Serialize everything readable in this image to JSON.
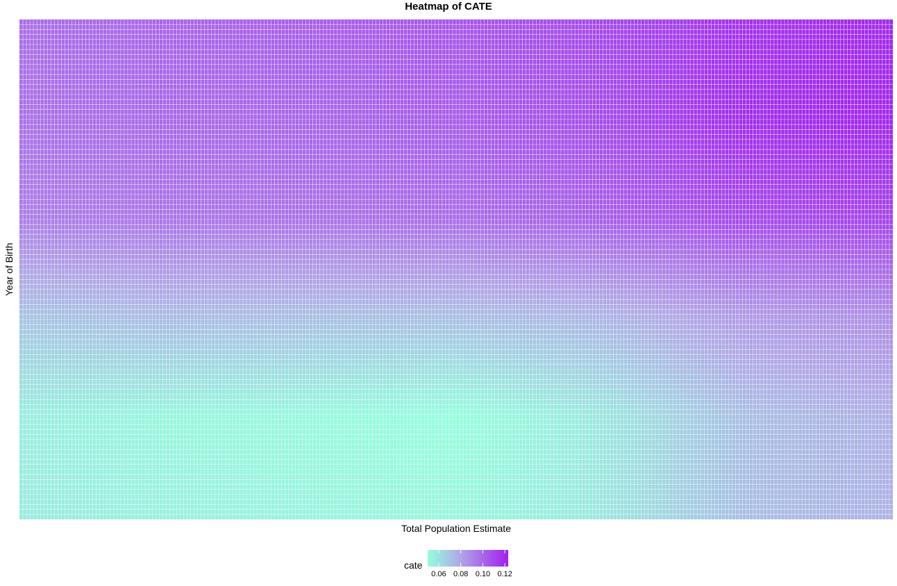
{
  "chart_data": {
    "type": "heatmap",
    "title": "Heatmap of CATE",
    "xlabel": "Total Population Estimate",
    "ylabel": "Year of Birth",
    "grid": "on",
    "x_tick_labels": [],
    "y_tick_labels": [],
    "n_columns": 250,
    "n_rows": 100,
    "value_name": "cate",
    "value_range": [
      0.05,
      0.123
    ],
    "colorscale": [
      {
        "value": 0.05,
        "color": "#93ffdd"
      },
      {
        "value": 0.08,
        "color": "#b0a6e6"
      },
      {
        "value": 0.123,
        "color": "#a11fee"
      }
    ],
    "rows_top_to_bottom": [
      {
        "row": 1,
        "values_left_to_right": [
          0.098,
          0.101,
          0.103,
          0.106,
          0.11,
          0.117,
          0.12
        ]
      },
      {
        "row": 20,
        "values_left_to_right": [
          0.097,
          0.1,
          0.101,
          0.104,
          0.109,
          0.119,
          0.121
        ]
      },
      {
        "row": 40,
        "values_left_to_right": [
          0.093,
          0.096,
          0.097,
          0.099,
          0.103,
          0.11,
          0.112
        ]
      },
      {
        "row": 60,
        "values_left_to_right": [
          0.07,
          0.073,
          0.072,
          0.072,
          0.075,
          0.084,
          0.088
        ]
      },
      {
        "row": 80,
        "values_left_to_right": [
          0.056,
          0.053,
          0.052,
          0.05,
          0.058,
          0.072,
          0.077
        ]
      },
      {
        "row": 100,
        "values_left_to_right": [
          0.057,
          0.055,
          0.054,
          0.053,
          0.058,
          0.072,
          0.076
        ]
      }
    ],
    "legend": {
      "position": "bottom",
      "title": "cate",
      "ticks": [
        {
          "value": 0.06,
          "label": "0.06"
        },
        {
          "value": 0.08,
          "label": "0.08"
        },
        {
          "value": 0.1,
          "label": "0.10"
        },
        {
          "value": 0.12,
          "label": "0.12"
        }
      ]
    }
  }
}
